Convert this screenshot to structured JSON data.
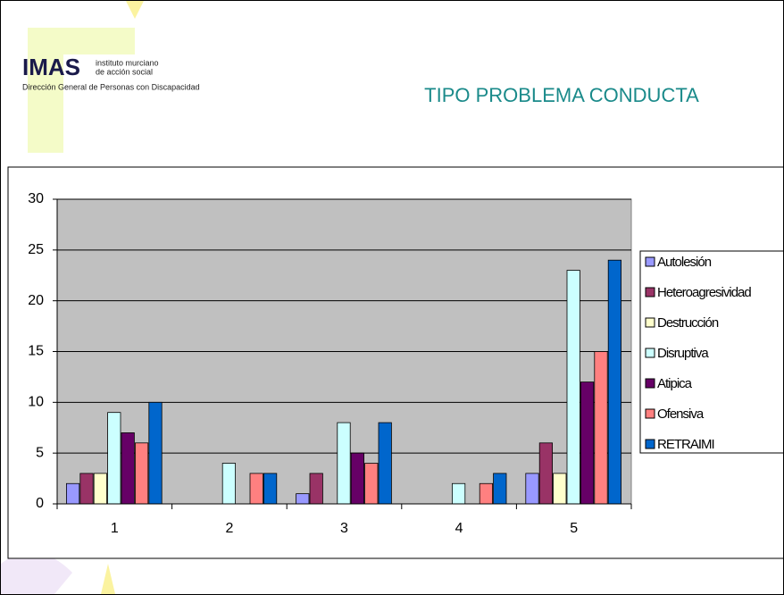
{
  "logo": {
    "brand": "IMAS",
    "line1": "instituto murciano",
    "line2": "de acción social",
    "subtitle": "Dirección General de Personas con Discapacidad"
  },
  "chart_data": {
    "type": "bar",
    "title": "TIPO PROBLEMA CONDUCTA",
    "categories": [
      "1",
      "2",
      "3",
      "4",
      "5"
    ],
    "series": [
      {
        "name": "Autolesión",
        "color": "#9999ff",
        "values": [
          2,
          0,
          1,
          0,
          3
        ]
      },
      {
        "name": "Heteroagresividad",
        "color": "#993366",
        "values": [
          3,
          0,
          3,
          0,
          6
        ]
      },
      {
        "name": "Destrucción",
        "color": "#ffffcc",
        "values": [
          3,
          0,
          0,
          0,
          3
        ]
      },
      {
        "name": "Disruptiva",
        "color": "#ccffff",
        "values": [
          9,
          4,
          8,
          2,
          23
        ]
      },
      {
        "name": "Atipica",
        "color": "#660066",
        "values": [
          7,
          0,
          5,
          0,
          12
        ]
      },
      {
        "name": "Ofensiva",
        "color": "#ff8080",
        "values": [
          6,
          3,
          4,
          2,
          15
        ]
      },
      {
        "name": "RETRAIMI",
        "color": "#0066cc",
        "values": [
          10,
          3,
          8,
          3,
          24
        ]
      }
    ],
    "ylim": [
      0,
      30
    ],
    "yticks": [
      0,
      5,
      10,
      15,
      20,
      25,
      30
    ],
    "grid": true,
    "legend": "right"
  }
}
